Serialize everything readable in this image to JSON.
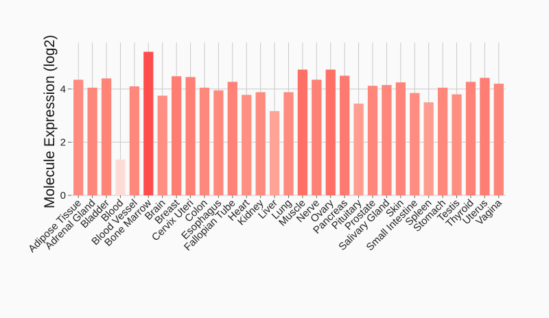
{
  "chart_data": {
    "type": "bar",
    "ylabel": "Molecule Expression (log2)",
    "xlabel": "",
    "ylim": [
      0,
      5.75
    ],
    "yticks": [
      0,
      2,
      4
    ],
    "grid": true,
    "categories": [
      "Adipose Tissue",
      "Adrenal Gland",
      "Bladder",
      "Blood",
      "Blood Vessel",
      "Bone Marrow",
      "Brain",
      "Breast",
      "Cervix Uteri",
      "Colon",
      "Esophagus",
      "Fallopian Tube",
      "Heart",
      "Kidney",
      "Liver",
      "Lung",
      "Muscle",
      "Nerve",
      "Ovary",
      "Pancreas",
      "Pituitary",
      "Prostate",
      "Salivary Gland",
      "Skin",
      "Small Intestine",
      "Spleen",
      "Stomach",
      "Testis",
      "Thyroid",
      "Uterus",
      "Vagina"
    ],
    "values": [
      4.35,
      4.05,
      4.4,
      1.35,
      4.1,
      5.4,
      3.75,
      4.48,
      4.45,
      4.05,
      3.95,
      4.27,
      3.78,
      3.88,
      3.17,
      3.88,
      4.73,
      4.35,
      4.73,
      4.5,
      3.45,
      4.12,
      4.15,
      4.25,
      3.85,
      3.5,
      4.05,
      3.8,
      4.27,
      4.42,
      4.2
    ],
    "colors": [
      "#fe8a80",
      "#fe877b",
      "#fe8478",
      "#fedcd6",
      "#fe887c",
      "#fe4d4d",
      "#fe8f82",
      "#fe7d72",
      "#fe7f74",
      "#fe887c",
      "#fe8a7e",
      "#fe8277",
      "#fe8f82",
      "#fe8b7f",
      "#fea497",
      "#fe8b7f",
      "#fe7066",
      "#fe8176",
      "#fe7066",
      "#fe7a70",
      "#fe9d90",
      "#fe867a",
      "#fe867a",
      "#fe8378",
      "#fe8c80",
      "#fe9c8f",
      "#fe887c",
      "#fe8e81",
      "#fe8277",
      "#fe7e73",
      "#fe8579"
    ]
  }
}
